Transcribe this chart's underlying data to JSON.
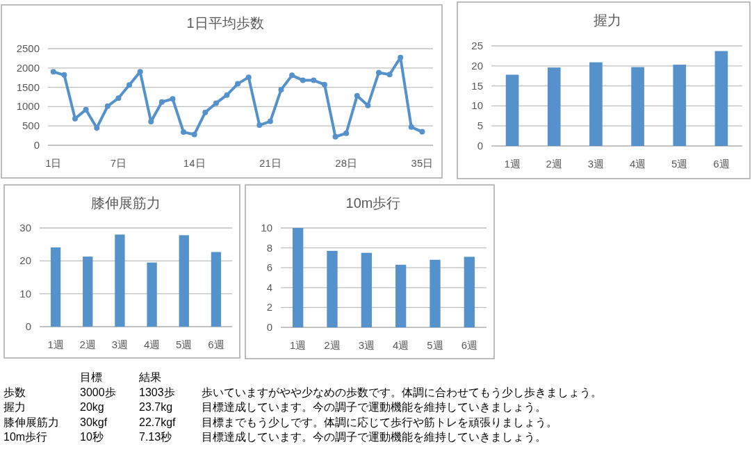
{
  "chart_data": [
    {
      "type": "line",
      "title": "1日平均歩数",
      "x": [
        1,
        2,
        3,
        4,
        5,
        6,
        7,
        8,
        9,
        10,
        11,
        12,
        13,
        14,
        15,
        16,
        17,
        18,
        19,
        20,
        21,
        22,
        23,
        24,
        25,
        26,
        27,
        28,
        29,
        30,
        31,
        32,
        33,
        34,
        35
      ],
      "values": [
        1900,
        1820,
        690,
        920,
        450,
        1010,
        1220,
        1560,
        1900,
        610,
        1120,
        1200,
        340,
        280,
        850,
        1090,
        1300,
        1590,
        1760,
        520,
        620,
        1440,
        1810,
        1680,
        1680,
        1570,
        220,
        310,
        1280,
        1030,
        1880,
        1830,
        2270,
        470,
        350
      ],
      "color": "#5591ca",
      "marker": "circle",
      "xlim": [
        0.5,
        36
      ],
      "xticks": [
        {
          "value": 1,
          "label": "1日"
        },
        {
          "value": 7,
          "label": "7日"
        },
        {
          "value": 14,
          "label": "14日"
        },
        {
          "value": 21,
          "label": "21日"
        },
        {
          "value": 28,
          "label": "28日"
        },
        {
          "value": 35,
          "label": "35日"
        }
      ],
      "ylim": [
        0,
        2500
      ],
      "yticks": [
        0,
        500,
        1000,
        1500,
        2000,
        2500
      ],
      "grid": "y"
    },
    {
      "type": "bar",
      "title": "握力",
      "categories": [
        "1週",
        "2週",
        "3週",
        "4週",
        "5週",
        "6週"
      ],
      "values": [
        17.8,
        19.6,
        20.9,
        19.7,
        20.3,
        23.7
      ],
      "color": "#5591ca",
      "ylim": [
        0,
        25
      ],
      "yticks": [
        0,
        5,
        10,
        15,
        20,
        25
      ],
      "grid": "y"
    },
    {
      "type": "bar",
      "title": "膝伸展筋力",
      "categories": [
        "1週",
        "2週",
        "3週",
        "4週",
        "5週",
        "6週"
      ],
      "values": [
        24.1,
        21.3,
        28.0,
        19.5,
        27.8,
        22.7
      ],
      "color": "#5591ca",
      "ylim": [
        0,
        30
      ],
      "yticks": [
        0,
        10,
        20,
        30
      ],
      "grid": "y"
    },
    {
      "type": "bar",
      "title": "10m歩行",
      "categories": [
        "1週",
        "2週",
        "3週",
        "4週",
        "5週",
        "6週"
      ],
      "values": [
        10.0,
        7.7,
        7.5,
        6.3,
        6.8,
        7.1
      ],
      "color": "#5591ca",
      "ylim": [
        0,
        10
      ],
      "yticks": [
        0,
        2,
        4,
        6,
        8,
        10
      ],
      "grid": "y"
    },
    {
      "type": "other",
      "annotations": [
        "目標",
        "結果",
        "歩数",
        "3000歩",
        "1303歩",
        "歩いていますがやや少なめの歩数です。体調に合わせてもう少し歩きましょう。",
        "握力",
        "20kg",
        "23.7kg",
        "目標達成しています。今の調子で運動機能を維持していきましょう。",
        "膝伸展筋力",
        "30kgf",
        "22.7kgf",
        "目標までもう少しです。体調に応じて歩行や筋トレを頑張りましょう。",
        "10m歩行",
        "10秒",
        "7.13秒",
        "目標達成しています。今の調子で運動機能を維持していきましょう。"
      ]
    }
  ]
}
